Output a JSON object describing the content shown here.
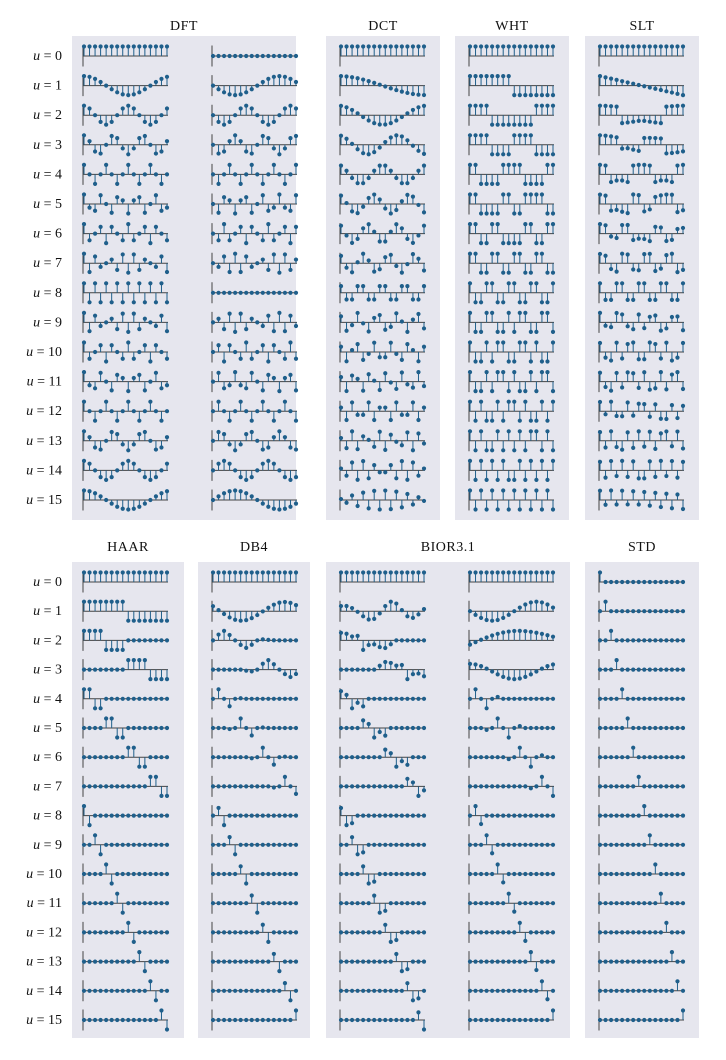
{
  "figure": {
    "top_titles": [
      "DFT",
      "DCT",
      "WHT",
      "SLT"
    ],
    "bottom_titles": [
      "HAAR",
      "DB4",
      "BIOR3.1",
      "STD"
    ],
    "row_label_var": "u",
    "row_label_eq": "=",
    "rows": [
      "0",
      "1",
      "2",
      "3",
      "4",
      "5",
      "6",
      "7",
      "8",
      "9",
      "10",
      "11",
      "12",
      "13",
      "14",
      "15"
    ]
  },
  "chart_data": {
    "type": "stem",
    "title": "",
    "n_samples": 16,
    "n_basis": 16,
    "colors": {
      "panel_bg": "#e6e6ee",
      "stem": "#1f5f8b",
      "marker": "#1f5f8b",
      "axis": "#444444"
    },
    "panels": [
      {
        "title": "DFT",
        "columns": [
          "dft_real",
          "dft_imag"
        ]
      },
      {
        "title": "DCT",
        "columns": [
          "dct"
        ]
      },
      {
        "title": "WHT",
        "columns": [
          "wht"
        ]
      },
      {
        "title": "SLT",
        "columns": [
          "slt"
        ]
      },
      {
        "title": "HAAR",
        "columns": [
          "haar"
        ]
      },
      {
        "title": "DB4",
        "columns": [
          "db4"
        ]
      },
      {
        "title": "BIOR3.1",
        "columns": [
          "bior_analysis",
          "bior_synthesis"
        ]
      },
      {
        "title": "STD",
        "columns": [
          "std"
        ]
      }
    ]
  }
}
